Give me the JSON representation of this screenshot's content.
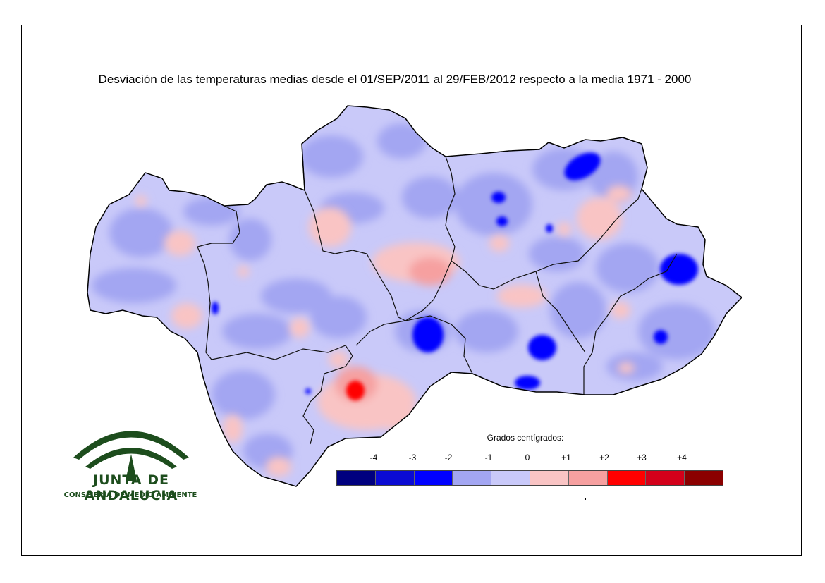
{
  "title": "Desviación de las temperaturas medias desde el 01/SEP/2011 al 29/FEB/2012 respecto a la media 1971 - 2000",
  "logo": {
    "name": "JUNTA DE ANDALUCIA",
    "subtitle": "CONSEJERIA DE MEDIO AMBIENTE",
    "color": "#1d4d1d"
  },
  "legend": {
    "title": "Grados centígrados:",
    "ticks": [
      "-4",
      "-3",
      "-2",
      "-1",
      "0",
      "+1",
      "+2",
      "+3",
      "+4"
    ],
    "colors": [
      "#00007f",
      "#0b0bd3",
      "#0000ff",
      "#a3a6f2",
      "#c9c9f9",
      "#f9c4c4",
      "#f6a0a0",
      "#ff0000",
      "#d3001a",
      "#8b0000"
    ]
  },
  "map": {
    "region": "Andalucía",
    "colors": {
      "base": "#c9c9f9",
      "cool": "#a3a6f2",
      "warm": "#f9c4c4",
      "warmer": "#f6a0a0",
      "cold": "#0000ff",
      "hot": "#ff0000"
    }
  }
}
